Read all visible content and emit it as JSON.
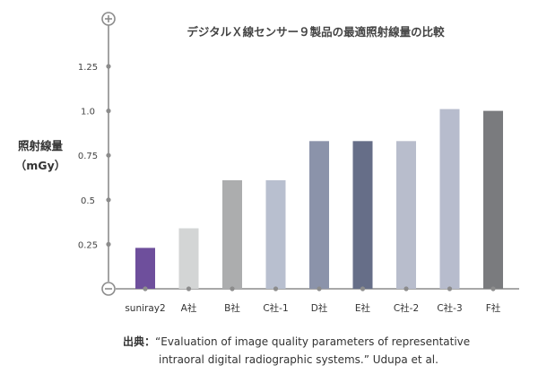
{
  "chart_data": {
    "type": "bar",
    "title": "デジタルＸ線センサー９製品の最適照射線量の比較",
    "ylabel": "照射線量",
    "yunit": "（mGy）",
    "ylim": [
      0,
      1.25
    ],
    "yticks": [
      "0.25",
      "0.5",
      "0.75",
      "1.0",
      "1.25"
    ],
    "categories": [
      "suniray2",
      "A社",
      "B社",
      "C社-1",
      "D社",
      "E社",
      "C社-2",
      "C社-3",
      "F社"
    ],
    "values": [
      0.23,
      0.34,
      0.61,
      0.61,
      0.83,
      0.83,
      0.83,
      1.01,
      1.0
    ],
    "colors": [
      "#6e4f9c",
      "#d3d5d5",
      "#acadae",
      "#b8bfcf",
      "#8b93aa",
      "#666e88",
      "#b8bdcc",
      "#b7bccd",
      "#7a7b7e"
    ],
    "axis_color": "#8c8c8c",
    "grid": false
  },
  "axis_symbols": {
    "top": "+",
    "bottom": "−"
  },
  "source": {
    "prefix": "出典：",
    "line1": "“Evaluation of image quality parameters of representative",
    "line2": "intraoral digital radiographic systems.” Udupa et al."
  }
}
